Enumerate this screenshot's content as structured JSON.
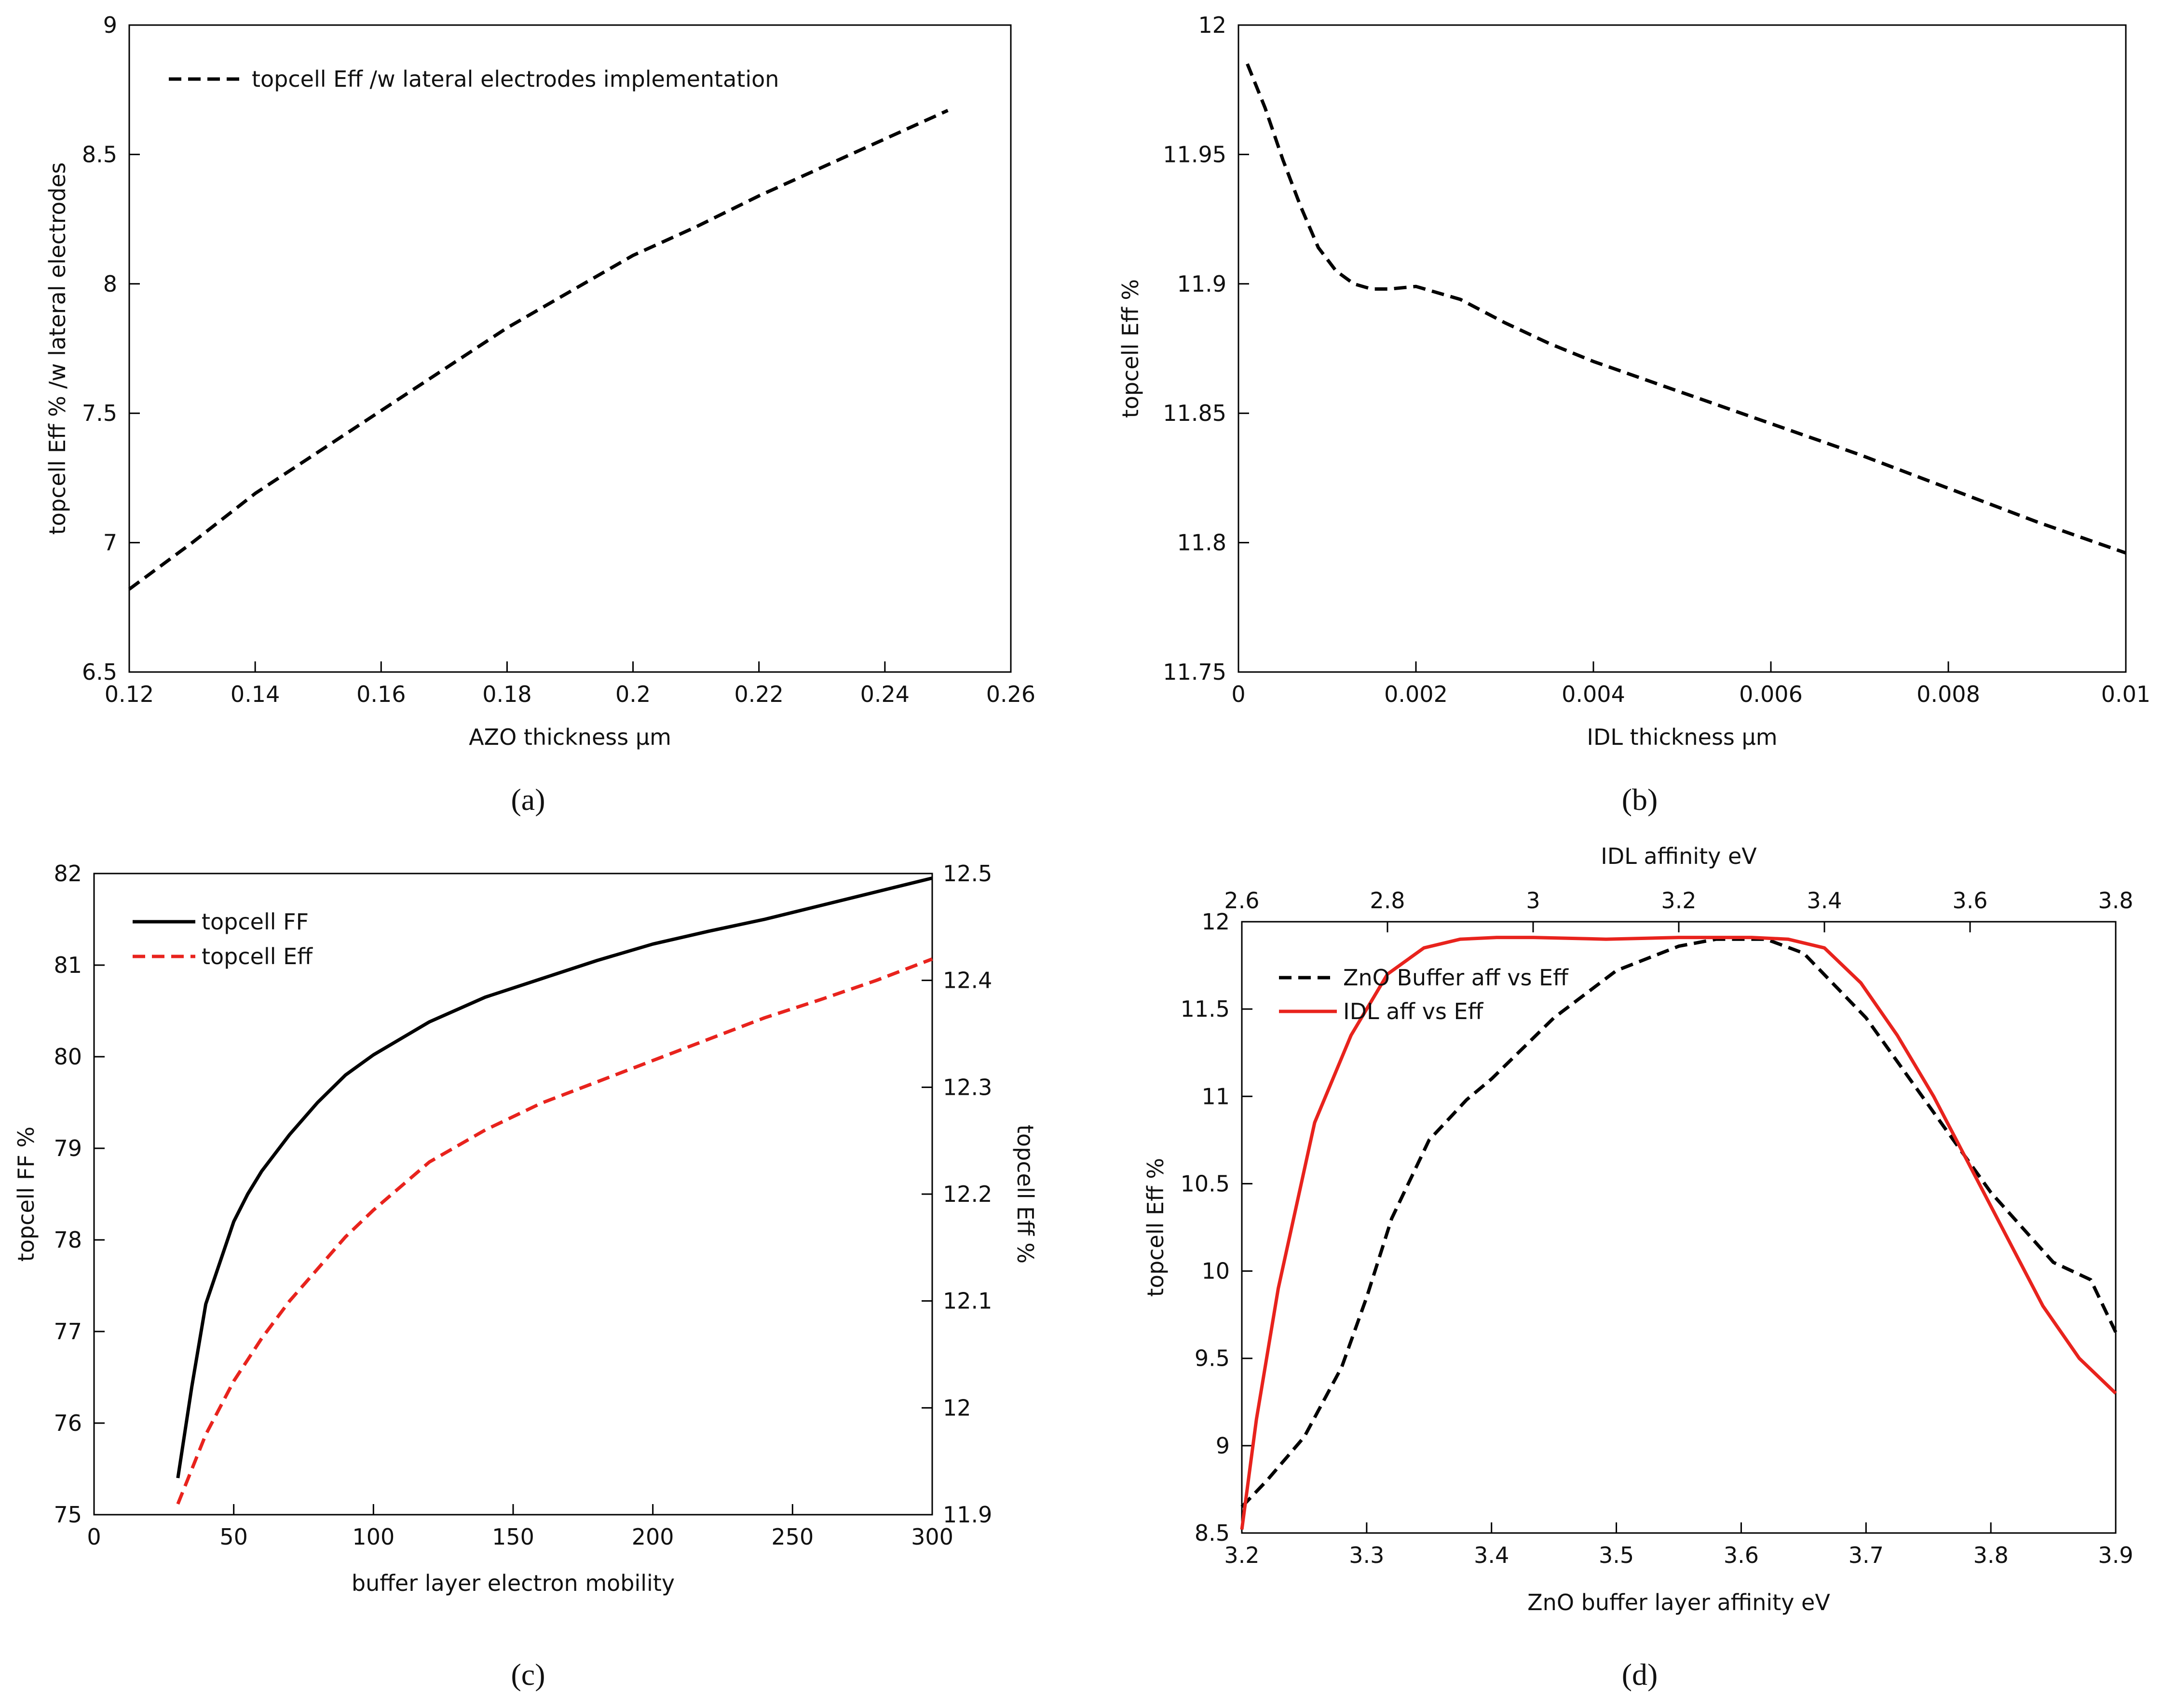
{
  "chart_data": [
    {
      "panel": "a",
      "panel_label": "(a)",
      "type": "line",
      "title": "",
      "xlabel": "AZO thickness µm",
      "ylabel": "topcell Eff % /w lateral electrodes",
      "xlim": [
        0.12,
        0.26
      ],
      "ylim": [
        6.5,
        9
      ],
      "xticks": [
        0.12,
        0.14,
        0.16,
        0.18,
        0.2,
        0.22,
        0.24,
        0.26
      ],
      "xtick_labels": [
        "0.12",
        "0.14",
        "0.16",
        "0.18",
        "0.2",
        "0.22",
        "0.24",
        "0.26"
      ],
      "yticks": [
        6.5,
        7,
        7.5,
        8,
        8.5,
        9
      ],
      "ytick_labels": [
        "6.5",
        "7",
        "7.5",
        "8",
        "8.5",
        "9"
      ],
      "legend_position": "top-left",
      "series": [
        {
          "name": "topcell Eff /w lateral electrodes implementation",
          "style": "dashed",
          "color": "#000000",
          "x": [
            0.12,
            0.13,
            0.14,
            0.15,
            0.16,
            0.17,
            0.18,
            0.19,
            0.2,
            0.21,
            0.22,
            0.23,
            0.24,
            0.25
          ],
          "y": [
            6.82,
            7.0,
            7.19,
            7.35,
            7.51,
            7.67,
            7.83,
            7.97,
            8.11,
            8.22,
            8.34,
            8.45,
            8.56,
            8.67
          ]
        }
      ]
    },
    {
      "panel": "b",
      "panel_label": "(b)",
      "type": "line",
      "title": "",
      "xlabel": "IDL thickness µm",
      "ylabel": "topcell Eff %",
      "xlim": [
        0,
        0.01
      ],
      "ylim": [
        11.75,
        12
      ],
      "xticks": [
        0,
        0.002,
        0.004,
        0.006,
        0.008,
        0.01
      ],
      "xtick_labels": [
        "0",
        "0.002",
        "0.004",
        "0.006",
        "0.008",
        "0.01"
      ],
      "yticks": [
        11.75,
        11.8,
        11.85,
        11.9,
        11.95,
        12
      ],
      "ytick_labels": [
        "11.75",
        "11.8",
        "11.85",
        "11.9",
        "11.95",
        "12"
      ],
      "series": [
        {
          "name": "topcell Eff",
          "style": "dashed",
          "color": "#000000",
          "x": [
            0.0001,
            0.0003,
            0.0005,
            0.0007,
            0.0009,
            0.0011,
            0.0013,
            0.0015,
            0.0017,
            0.002,
            0.0025,
            0.003,
            0.0035,
            0.004,
            0.005,
            0.006,
            0.007,
            0.008,
            0.009,
            0.01
          ],
          "y": [
            11.985,
            11.968,
            11.948,
            11.93,
            11.914,
            11.905,
            11.9,
            11.898,
            11.898,
            11.899,
            11.894,
            11.885,
            11.877,
            11.87,
            11.858,
            11.846,
            11.834,
            11.821,
            11.808,
            11.796
          ]
        }
      ]
    },
    {
      "panel": "c",
      "panel_label": "(c)",
      "type": "line",
      "title": "",
      "xlabel": "buffer layer electron mobility",
      "ylabel": "topcell FF %",
      "y2label": "topcell Eff %",
      "xlim": [
        0,
        300
      ],
      "ylim": [
        75,
        82
      ],
      "y2lim": [
        11.9,
        12.5
      ],
      "xticks": [
        0,
        50,
        100,
        150,
        200,
        250,
        300
      ],
      "xtick_labels": [
        "0",
        "50",
        "100",
        "150",
        "200",
        "250",
        "300"
      ],
      "yticks": [
        75,
        76,
        77,
        78,
        79,
        80,
        81,
        82
      ],
      "ytick_labels": [
        "75",
        "76",
        "77",
        "78",
        "79",
        "80",
        "81",
        "82"
      ],
      "y2ticks": [
        11.9,
        12,
        12.1,
        12.2,
        12.3,
        12.4,
        12.5
      ],
      "y2tick_labels": [
        "11.9",
        "12",
        "12.1",
        "12.2",
        "12.3",
        "12.4",
        "12.5"
      ],
      "legend_position": "top-left",
      "series": [
        {
          "name": "topcell FF",
          "axis": "left",
          "style": "solid",
          "color": "#000000",
          "x": [
            30,
            35,
            40,
            45,
            50,
            55,
            60,
            70,
            80,
            90,
            100,
            120,
            140,
            160,
            180,
            200,
            220,
            240,
            260,
            280,
            300
          ],
          "y": [
            75.4,
            76.4,
            77.3,
            77.75,
            78.2,
            78.5,
            78.75,
            79.15,
            79.5,
            79.8,
            80.02,
            80.38,
            80.65,
            80.85,
            81.05,
            81.23,
            81.37,
            81.5,
            81.65,
            81.8,
            81.95
          ]
        },
        {
          "name": "topcell Eff",
          "axis": "right",
          "style": "dashed",
          "color": "#e8231d",
          "x": [
            30,
            40,
            50,
            60,
            70,
            80,
            90,
            100,
            120,
            140,
            160,
            180,
            200,
            220,
            240,
            260,
            280,
            300
          ],
          "y": [
            11.91,
            11.975,
            12.025,
            12.065,
            12.1,
            12.13,
            12.16,
            12.185,
            12.23,
            12.26,
            12.285,
            12.305,
            12.325,
            12.345,
            12.365,
            12.382,
            12.4,
            12.42
          ]
        }
      ]
    },
    {
      "panel": "d",
      "panel_label": "(d)",
      "type": "line",
      "title": "",
      "xlabel": "ZnO buffer layer affinity eV",
      "x2label": "IDL affinity eV",
      "ylabel": "topcell Eff %",
      "xlim": [
        3.2,
        3.9
      ],
      "x2lim": [
        2.6,
        3.8
      ],
      "ylim": [
        8.5,
        12
      ],
      "xticks": [
        3.2,
        3.3,
        3.4,
        3.5,
        3.6,
        3.7,
        3.8,
        3.9
      ],
      "xtick_labels": [
        "3.2",
        "3.3",
        "3.4",
        "3.5",
        "3.6",
        "3.7",
        "3.8",
        "3.9"
      ],
      "x2ticks": [
        2.6,
        2.8,
        3.0,
        3.2,
        3.4,
        3.6,
        3.8
      ],
      "x2tick_labels": [
        "2.6",
        "2.8",
        "3",
        "3.2",
        "3.4",
        "3.6",
        "3.8"
      ],
      "yticks": [
        8.5,
        9,
        9.5,
        10,
        10.5,
        11,
        11.5,
        12
      ],
      "ytick_labels": [
        "8.5",
        "9",
        "9.5",
        "10",
        "10.5",
        "11",
        "11.5",
        "12"
      ],
      "legend_position": "top-left",
      "series": [
        {
          "name": "ZnO Buffer aff vs Eff",
          "axis": "bottom",
          "style": "dashed",
          "color": "#000000",
          "x": [
            3.2,
            3.22,
            3.25,
            3.28,
            3.3,
            3.32,
            3.35,
            3.38,
            3.4,
            3.45,
            3.5,
            3.55,
            3.58,
            3.6,
            3.62,
            3.65,
            3.7,
            3.75,
            3.8,
            3.85,
            3.88,
            3.9
          ],
          "y": [
            8.65,
            8.8,
            9.05,
            9.45,
            9.85,
            10.3,
            10.75,
            10.98,
            11.1,
            11.45,
            11.72,
            11.86,
            11.9,
            11.9,
            11.9,
            11.82,
            11.45,
            10.95,
            10.45,
            10.05,
            9.95,
            9.65
          ]
        },
        {
          "name": "IDL aff vs Eff",
          "axis": "top",
          "style": "solid",
          "color": "#e8231d",
          "x": [
            2.6,
            2.62,
            2.65,
            2.7,
            2.75,
            2.8,
            2.85,
            2.9,
            2.95,
            3.0,
            3.1,
            3.2,
            3.3,
            3.35,
            3.4,
            3.45,
            3.5,
            3.55,
            3.6,
            3.65,
            3.7,
            3.75,
            3.8
          ],
          "y": [
            8.52,
            9.15,
            9.9,
            10.85,
            11.35,
            11.7,
            11.85,
            11.9,
            11.91,
            11.91,
            11.9,
            11.91,
            11.91,
            11.9,
            11.85,
            11.65,
            11.35,
            11.0,
            10.6,
            10.2,
            9.8,
            9.5,
            9.3
          ]
        }
      ]
    }
  ]
}
